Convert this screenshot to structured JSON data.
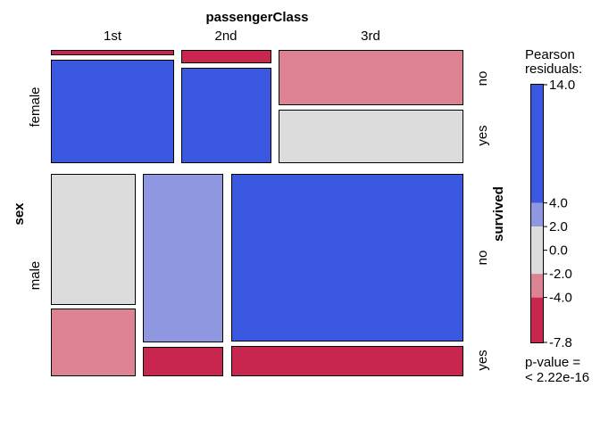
{
  "chart_data": {
    "type": "mosaic",
    "top_variable": "passengerClass",
    "left_variable": "sex",
    "right_variable": "survived",
    "class_labels": [
      "1st",
      "2nd",
      "3rd"
    ],
    "sex_labels": [
      "female",
      "male"
    ],
    "survived_labels": [
      "no",
      "yes"
    ],
    "cells": [
      {
        "class": "1st",
        "sex": "female",
        "survived": "no",
        "residual_band": "< -4",
        "color": "#C8254F"
      },
      {
        "class": "1st",
        "sex": "female",
        "survived": "yes",
        "residual_band": "> 4",
        "color": "#3A58E0"
      },
      {
        "class": "2nd",
        "sex": "female",
        "survived": "no",
        "residual_band": "< -4",
        "color": "#C8254F"
      },
      {
        "class": "2nd",
        "sex": "female",
        "survived": "yes",
        "residual_band": "> 4",
        "color": "#3A58E0"
      },
      {
        "class": "3rd",
        "sex": "female",
        "survived": "no",
        "residual_band": "-4 to -2",
        "color": "#DC8292"
      },
      {
        "class": "3rd",
        "sex": "female",
        "survived": "yes",
        "residual_band": "-2 to 2",
        "color": "#DCDCDC"
      },
      {
        "class": "1st",
        "sex": "male",
        "survived": "no",
        "residual_band": "-2 to 2",
        "color": "#DCDCDC"
      },
      {
        "class": "1st",
        "sex": "male",
        "survived": "yes",
        "residual_band": "-4 to -2",
        "color": "#DC8292"
      },
      {
        "class": "2nd",
        "sex": "male",
        "survived": "no",
        "residual_band": "2 to 4",
        "color": "#8E97E0"
      },
      {
        "class": "2nd",
        "sex": "male",
        "survived": "yes",
        "residual_band": "< -4",
        "color": "#C8254F"
      },
      {
        "class": "3rd",
        "sex": "male",
        "survived": "no",
        "residual_band": "> 4",
        "color": "#3A58E0"
      },
      {
        "class": "3rd",
        "sex": "male",
        "survived": "yes",
        "residual_band": "< -4",
        "color": "#C8254F"
      }
    ],
    "legend": {
      "title_line1": "Pearson",
      "title_line2": "residuals:",
      "ticks": [
        "14.0",
        "4.0",
        "2.0",
        "0.0",
        "-2.0",
        "-4.0",
        "-7.8"
      ],
      "pvalue_line1": "p-value =",
      "pvalue_line2": "< 2.22e-16",
      "range": [
        -7.8,
        14.0
      ],
      "bands": [
        {
          "from": 4.0,
          "to": 14.0,
          "color": "#3A58E0"
        },
        {
          "from": 2.0,
          "to": 4.0,
          "color": "#8E97E0"
        },
        {
          "from": -2.0,
          "to": 2.0,
          "color": "#DCDCDC"
        },
        {
          "from": -4.0,
          "to": -2.0,
          "color": "#DC8292"
        },
        {
          "from": -7.8,
          "to": -4.0,
          "color": "#C8254F"
        }
      ]
    }
  }
}
